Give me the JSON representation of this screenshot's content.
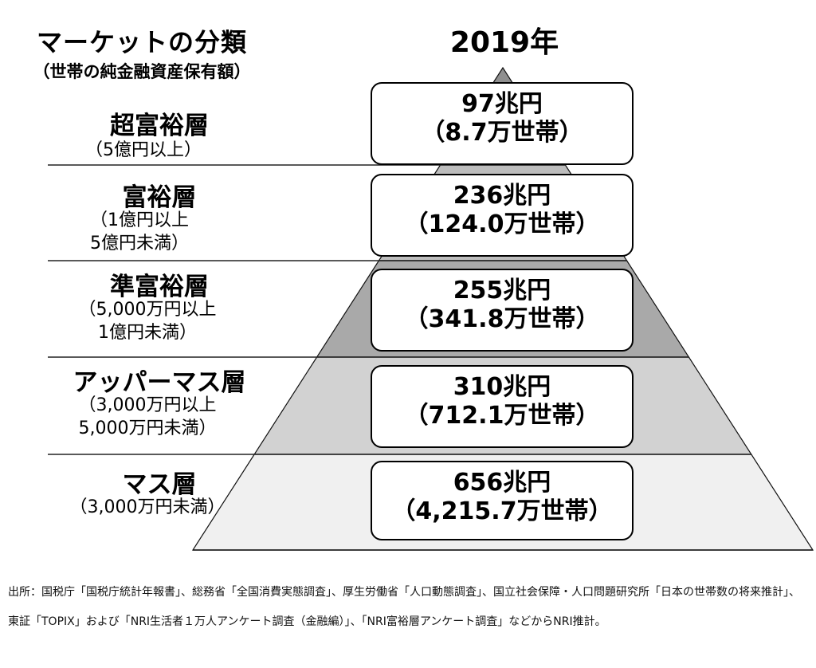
{
  "header": {
    "title": "マーケットの分類",
    "subtitle": "（世帯の純金融資産保有額）",
    "year": "2019年"
  },
  "tiers": [
    {
      "name": "超富裕層",
      "range": "（5億円以上）",
      "amount": "97兆円",
      "households": "（8.7万世帯）",
      "color": "#8f8f8f"
    },
    {
      "name": "富裕層",
      "range": "（1億円以上\n5億円未満）",
      "amount": "236兆円",
      "households": "（124.0万世帯）",
      "color": "#bdbdbd"
    },
    {
      "name": "準富裕層",
      "range": "（5,000万円以上\n1億円未満）",
      "amount": "255兆円",
      "households": "（341.8万世帯）",
      "color": "#a9a9a9"
    },
    {
      "name": "アッパーマス層",
      "range": "（3,000万円以上\n5,000万円未満）",
      "amount": "310兆円",
      "households": "（712.1万世帯）",
      "color": "#d2d2d2"
    },
    {
      "name": "マス層",
      "range": "（3,000万円未満）",
      "amount": "656兆円",
      "households": "（4,215.7万世帯）",
      "color": "#f0f0f0"
    }
  ],
  "chart_data": {
    "type": "table",
    "title": "マーケットの分類",
    "subtitle": "（世帯の純金融資産保有額）",
    "year": "2019年",
    "categories": [
      "超富裕層",
      "富裕層",
      "準富裕層",
      "アッパーマス層",
      "マス層"
    ],
    "series": [
      {
        "name": "純金融資産保有額（兆円）",
        "values": [
          97,
          236,
          255,
          310,
          656
        ]
      },
      {
        "name": "世帯数（万世帯）",
        "values": [
          8.7,
          124.0,
          341.8,
          712.1,
          4215.7
        ]
      }
    ]
  },
  "source": "出所：国税庁「国税庁統計年報書」、総務省「全国消費実態調査」、厚生労働省「人口動態調査」、国立社会保障・人口問題研究所「日本の世帯数の将来推計」、東証「TOPIX」および「NRI生活者１万人アンケート調査（金融編）」、「NRI富裕層アンケート調査」などからNRI推計。"
}
